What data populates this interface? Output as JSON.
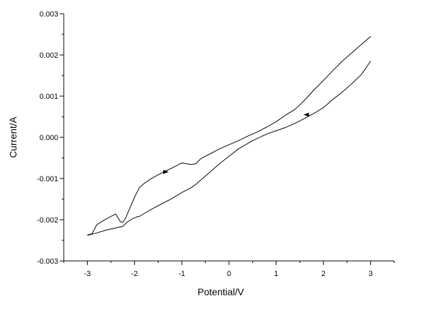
{
  "chart_data": {
    "type": "line",
    "xlabel": "Potential/V",
    "ylabel": "Current/A",
    "xlim": [
      -3.5,
      3.5
    ],
    "ylim": [
      -0.003,
      0.003
    ],
    "grid": false,
    "xticks": [
      -3,
      -2,
      -1,
      0,
      1,
      2,
      3
    ],
    "xtick_labels": [
      "-3",
      "-2",
      "-1",
      "0",
      "1",
      "2",
      "3"
    ],
    "yticks": [
      -0.003,
      -0.002,
      -0.001,
      0,
      0.001,
      0.002,
      0.003
    ],
    "ytick_labels": [
      "-0.003",
      "-0.002",
      "-0.001",
      "0.000",
      "0.001",
      "0.002",
      "0.003"
    ],
    "line_color": "#000000",
    "series": [
      {
        "x": [
          -3.0,
          -2.8,
          -2.6,
          -2.4,
          -2.25,
          -2.15,
          -2.05,
          -1.95,
          -1.9,
          -1.8,
          -1.6,
          -1.4,
          -1.2,
          -1.0,
          -0.8,
          -0.7,
          -0.6,
          -0.4,
          -0.2,
          0.0,
          0.2,
          0.5,
          0.8,
          1.0,
          1.2,
          1.4,
          1.6,
          1.8,
          2.0,
          2.2,
          2.4,
          2.6,
          2.8,
          3.0
        ],
        "values": [
          -0.00238,
          -0.00232,
          -0.00225,
          -0.0022,
          -0.00216,
          -0.00205,
          -0.00198,
          -0.00193,
          -0.00192,
          -0.00185,
          -0.00172,
          -0.0016,
          -0.00148,
          -0.00134,
          -0.00122,
          -0.00114,
          -0.00104,
          -0.00084,
          -0.00064,
          -0.00046,
          -0.00028,
          -8e-05,
          8e-05,
          0.00016,
          0.00024,
          0.00034,
          0.00046,
          0.00058,
          0.00072,
          0.00092,
          0.0011,
          0.0013,
          0.00152,
          0.00185
        ]
      },
      {
        "x": [
          3.0,
          2.8,
          2.6,
          2.4,
          2.2,
          2.0,
          1.8,
          1.6,
          1.4,
          1.2,
          1.0,
          0.8,
          0.6,
          0.4,
          0.2,
          0.0,
          -0.2,
          -0.4,
          -0.6,
          -0.7,
          -0.8,
          -1.0,
          -1.2,
          -1.4,
          -1.6,
          -1.8,
          -1.9,
          -2.0,
          -2.1,
          -2.2,
          -2.25,
          -2.3,
          -2.4,
          -2.6,
          -2.8,
          -2.9,
          -3.0
        ],
        "values": [
          0.00245,
          0.00225,
          0.00205,
          0.00185,
          0.00162,
          0.00138,
          0.00115,
          0.0009,
          0.00068,
          0.00054,
          0.00038,
          0.00025,
          0.00013,
          3e-05,
          -8e-05,
          -0.00018,
          -0.00028,
          -0.0004,
          -0.00052,
          -0.00064,
          -0.00066,
          -0.00062,
          -0.00074,
          -0.00085,
          -0.00097,
          -0.00112,
          -0.00122,
          -0.00145,
          -0.00172,
          -0.00198,
          -0.00206,
          -0.00205,
          -0.00186,
          -0.00198,
          -0.00212,
          -0.00234,
          -0.00237
        ]
      }
    ],
    "arrows": [
      {
        "x": -1.35,
        "y": -0.00084,
        "direction": "right"
      },
      {
        "x": 1.65,
        "y": 0.00055,
        "direction": "left"
      }
    ]
  }
}
